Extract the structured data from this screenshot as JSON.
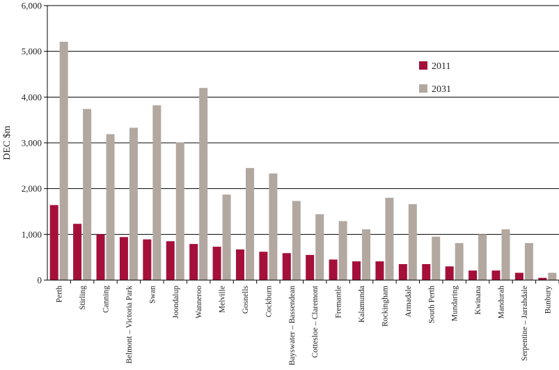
{
  "chart_data": {
    "type": "bar",
    "title": "",
    "xlabel": "",
    "ylabel": "DEC $m",
    "ylim": [
      0,
      6000
    ],
    "yticks": [
      0,
      1000,
      2000,
      3000,
      4000,
      5000,
      6000
    ],
    "ytick_labels": [
      "0",
      "1,000",
      "2,000",
      "3,000",
      "4,000",
      "5,000",
      "6,000"
    ],
    "grid": "horizontal",
    "legend_position": "top-right",
    "categories": [
      "Perth",
      "Stirling",
      "Canning",
      "Belmont – Victoria Park",
      "Swan",
      "Joondalup",
      "Wanneroo",
      "Melville",
      "Gosnells",
      "Cockburn",
      "Bayswater – Bassendean",
      "Cottesloe – Claremont",
      "Fremantle",
      "Kalamunda",
      "Rockingham",
      "Armadale",
      "South Perth",
      "Mundaring",
      "Kwinana",
      "Mandurah",
      "Serpentine – Jarrahdale",
      "Bunbury"
    ],
    "series": [
      {
        "name": "2011",
        "color": "#a5103a",
        "values": [
          1640,
          1230,
          1000,
          940,
          890,
          850,
          790,
          730,
          670,
          620,
          590,
          550,
          450,
          410,
          410,
          350,
          350,
          300,
          210,
          210,
          160,
          50
        ]
      },
      {
        "name": "2031",
        "color": "#b2a8a0",
        "values": [
          5210,
          3740,
          3190,
          3330,
          3820,
          3010,
          4200,
          1870,
          2450,
          2330,
          1730,
          1440,
          1290,
          1110,
          1800,
          1660,
          950,
          810,
          1000,
          1110,
          810,
          160
        ]
      }
    ]
  }
}
